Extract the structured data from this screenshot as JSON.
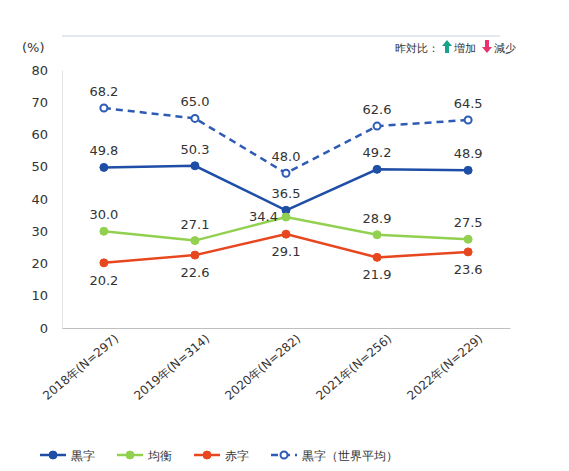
{
  "chart_data": {
    "type": "line",
    "ylabel": "(%)",
    "annotations": [
      "昨対比：",
      "増加",
      "減少"
    ],
    "categories": [
      "2018年(N=297)",
      "2019年(N=314)",
      "2020年(N=282)",
      "2021年(N=256)",
      "2022年(N=229)"
    ],
    "series": [
      {
        "name": "黒字",
        "color": "#1f4ea6",
        "marker": "circle",
        "line_style": "solid",
        "values": [
          49.8,
          50.3,
          36.5,
          49.2,
          48.9
        ]
      },
      {
        "name": "均衡",
        "color": "#92d050",
        "marker": "circle",
        "line_style": "solid",
        "values": [
          30.0,
          27.1,
          34.4,
          28.9,
          27.5
        ]
      },
      {
        "name": "赤字",
        "color": "#e8461e",
        "marker": "circle",
        "line_style": "solid",
        "values": [
          20.2,
          22.6,
          29.1,
          21.9,
          23.6
        ]
      },
      {
        "name": "黒字（世界平均）",
        "color": "#2e5bb5",
        "marker": "circle-open",
        "line_style": "dashed",
        "values": [
          68.2,
          65.0,
          48.0,
          62.6,
          64.5
        ]
      }
    ],
    "value_labels": [
      [
        "49.8",
        "50.3",
        "36.5",
        "49.2",
        "48.9"
      ],
      [
        "30.0",
        "27.1",
        "34.4",
        "28.9",
        "27.5"
      ],
      [
        "20.2",
        "22.6",
        "29.1",
        "21.9",
        "23.6"
      ],
      [
        "68.2",
        "65.0",
        "48.0",
        "62.6",
        "64.5"
      ]
    ],
    "ylim": [
      0,
      80
    ],
    "yticks": [
      0,
      10,
      20,
      30,
      40,
      50,
      60,
      70,
      80
    ],
    "grid": false,
    "legend": "bottom",
    "data_labels": true
  }
}
